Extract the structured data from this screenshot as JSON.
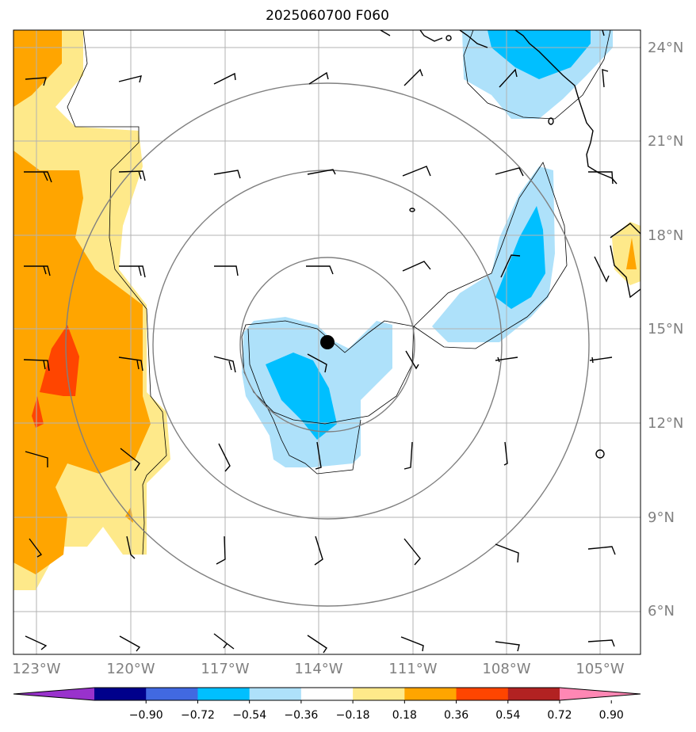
{
  "title": "2025060700 F060",
  "map": {
    "lon_labels": [
      "123°W",
      "120°W",
      "117°W",
      "114°W",
      "111°W",
      "108°W",
      "105°W"
    ],
    "lat_labels": [
      "24°N",
      "21°N",
      "18°N",
      "15°N",
      "12°N",
      "9°N",
      "6°N"
    ],
    "center_marker": {
      "lon": -113.8,
      "lat": 14.6
    },
    "range_rings_deg": [
      2.9,
      5.3,
      8.3
    ],
    "colors": {
      "pos1": "#fee98a",
      "pos2": "#ffa500",
      "pos3": "#ff4500",
      "neg1": "#aee1fa",
      "neg2": "#00bfff",
      "ring": "#808080",
      "grid": "#b3b3b3",
      "coast": "#000000"
    }
  },
  "colorbar": {
    "ticks": [
      "−0.90",
      "−0.72",
      "−0.54",
      "−0.36",
      "−0.18",
      "0.18",
      "0.36",
      "0.54",
      "0.72",
      "0.90"
    ],
    "colors": [
      "#9932cc",
      "#00008b",
      "#4169e1",
      "#00bfff",
      "#aee1fa",
      "#ffffff",
      "#fee98a",
      "#ffa500",
      "#ff4500",
      "#b22222",
      "#ff87b4"
    ]
  }
}
